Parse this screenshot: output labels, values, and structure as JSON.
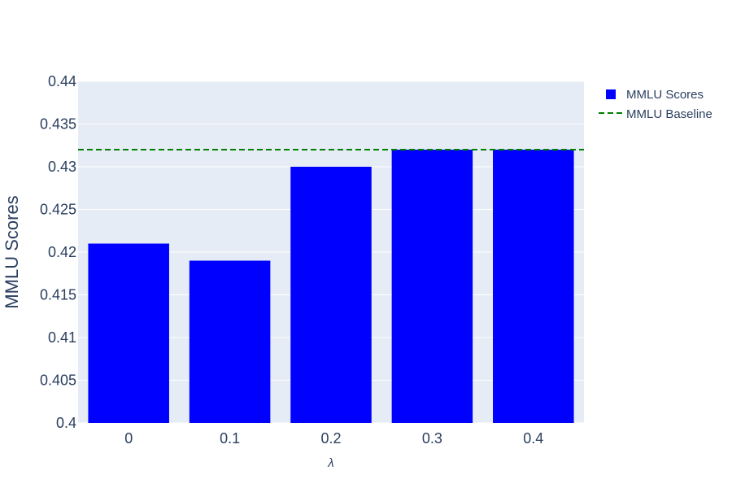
{
  "chart_data": {
    "type": "bar",
    "title": "",
    "xlabel": "λ",
    "ylabel": "MMLU Scores",
    "categories": [
      "0",
      "0.1",
      "0.2",
      "0.3",
      "0.4"
    ],
    "series": [
      {
        "name": "MMLU Scores",
        "values": [
          0.421,
          0.419,
          0.43,
          0.432,
          0.432
        ],
        "color": "#0000ff"
      }
    ],
    "baseline": {
      "name": "MMLU Baseline",
      "value": 0.432,
      "color": "#008000",
      "style": "dashed"
    },
    "ylim": [
      0.4,
      0.44
    ],
    "yticks": [
      "0.4",
      "0.405",
      "0.41",
      "0.415",
      "0.42",
      "0.425",
      "0.43",
      "0.435",
      "0.44"
    ],
    "grid": true,
    "legend_position": "top-right",
    "plot_background": "#e5ecf6"
  }
}
